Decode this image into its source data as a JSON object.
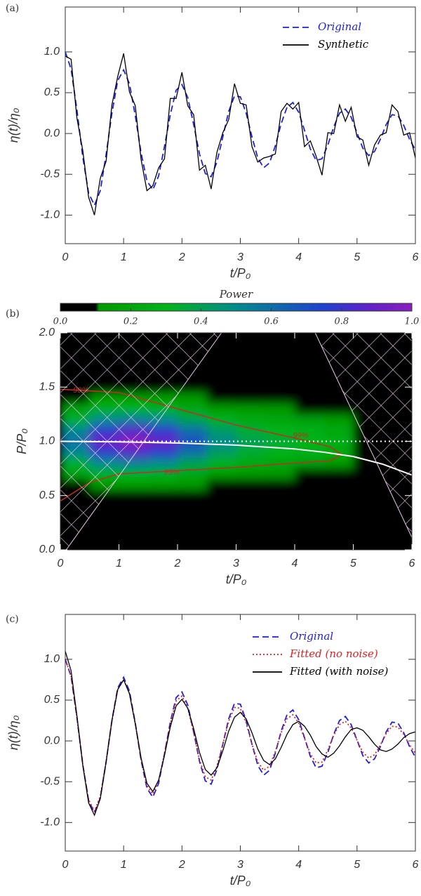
{
  "chart_data": [
    {
      "type": "line",
      "panel_label": "(a)",
      "xlabel": "t/P₀",
      "ylabel": "η(t)/η₀",
      "xlim": [
        0,
        6
      ],
      "ylim": [
        -1.35,
        1.55
      ],
      "xticks": [
        0,
        1,
        2,
        3,
        4,
        5,
        6
      ],
      "yticks": [
        {
          "value": -1,
          "label": "-1.0"
        },
        -0.5,
        {
          "value": 0,
          "label": "0.0"
        },
        0.5,
        {
          "value": 1,
          "label": "1.0"
        }
      ],
      "legend": "upper right",
      "x": [
        0,
        0.1,
        0.2,
        0.3,
        0.4,
        0.5,
        0.6,
        0.7,
        0.8,
        0.9,
        1,
        1.1,
        1.2,
        1.3,
        1.4,
        1.5,
        1.6,
        1.7,
        1.8,
        1.9,
        2,
        2.1,
        2.2,
        2.3,
        2.4,
        2.5,
        2.6,
        2.7,
        2.8,
        2.9,
        3,
        3.1,
        3.2,
        3.3,
        3.4,
        3.5,
        3.6,
        3.7,
        3.8,
        3.9,
        4,
        4.1,
        4.2,
        4.3,
        4.4,
        4.5,
        4.6,
        4.7,
        4.8,
        4.9,
        5,
        5.1,
        5.2,
        5.3,
        5.4,
        5.5,
        5.6,
        5.7,
        5.8,
        5.9,
        6
      ],
      "series": [
        {
          "name": "Original",
          "color": "#1f1fdc",
          "style": "dashed",
          "values": [
            1.0,
            0.79,
            0.29,
            -0.29,
            -0.73,
            -0.88,
            -0.7,
            -0.26,
            0.25,
            0.65,
            0.78,
            0.61,
            0.22,
            -0.24,
            -0.58,
            -0.69,
            -0.52,
            -0.16,
            0.23,
            0.53,
            0.6,
            0.44,
            0.11,
            -0.25,
            -0.49,
            -0.53,
            -0.35,
            -0.04,
            0.27,
            0.46,
            0.45,
            0.25,
            -0.04,
            -0.3,
            -0.42,
            -0.36,
            -0.15,
            0.12,
            0.32,
            0.38,
            0.26,
            0.04,
            -0.19,
            -0.33,
            -0.31,
            -0.14,
            0.08,
            0.25,
            0.3,
            0.2,
            0.01,
            -0.18,
            -0.27,
            -0.22,
            -0.07,
            0.11,
            0.23,
            0.22,
            0.1,
            -0.07,
            -0.2
          ]
        },
        {
          "name": "Synthetic",
          "color": "#000000",
          "style": "solid",
          "values": [
            0.95,
            0.91,
            0.19,
            -0.21,
            -0.78,
            -1.0,
            -0.55,
            -0.34,
            0.35,
            0.7,
            0.98,
            0.51,
            0.34,
            -0.32,
            -0.7,
            -0.64,
            -0.42,
            -0.31,
            0.43,
            0.43,
            0.75,
            0.34,
            0.23,
            -0.45,
            -0.39,
            -0.68,
            -0.23,
            0.01,
            0.17,
            0.61,
            0.37,
            0.35,
            -0.16,
            -0.35,
            -0.3,
            -0.28,
            -0.25,
            0.27,
            0.37,
            0.3,
            0.38,
            -0.16,
            -0.09,
            -0.28,
            -0.51,
            0.01,
            0.0,
            0.35,
            0.15,
            0.32,
            -0.04,
            -0.08,
            -0.39,
            -0.14,
            -0.02,
            0.01,
            0.35,
            0.27,
            -0.02,
            0.01,
            -0.3
          ]
        }
      ]
    },
    {
      "type": "heatmap",
      "panel_label": "(b)",
      "xlabel": "t/P₀",
      "ylabel": "P/P₀",
      "xlim": [
        0,
        6
      ],
      "ylim": [
        0,
        2
      ],
      "xticks": [
        0,
        1,
        2,
        3,
        4,
        5,
        6
      ],
      "yticks": [
        {
          "value": 0,
          "label": "0.0"
        },
        0.5,
        {
          "value": 1,
          "label": "1.0"
        },
        1.5,
        {
          "value": 2,
          "label": "2.0"
        }
      ],
      "colorbar": {
        "title": "Power",
        "lim": [
          0,
          1
        ],
        "ticks": [
          {
            "value": 0,
            "label": "0.0"
          },
          0.2,
          0.4,
          0.6,
          0.8,
          {
            "value": 1,
            "label": "1.0"
          }
        ]
      },
      "colorscale": [
        [
          0,
          "#000000"
        ],
        [
          0.1,
          "#000000"
        ],
        [
          0.11,
          "#009a00"
        ],
        [
          0.3,
          "#00b418"
        ],
        [
          0.5,
          "#008c8c"
        ],
        [
          0.75,
          "#2040d0"
        ],
        [
          0.88,
          "#6020c8"
        ],
        [
          1,
          "#8a20c0"
        ]
      ],
      "t": [
        0.25,
        0.75,
        1.25,
        1.75,
        2.25,
        2.75,
        3.25,
        3.75,
        4.25,
        4.75,
        5.25,
        5.75
      ],
      "period": [
        1.5,
        1.4,
        1.3,
        1.2,
        1.1,
        1.0,
        0.9,
        0.8,
        0.7,
        0.6,
        0.5
      ],
      "z": [
        [
          0.03,
          0.05,
          0.05,
          0.05,
          0.04,
          0.03,
          0.02,
          0.02,
          0.02,
          0.01,
          0.01,
          0
        ],
        [
          0.09,
          0.14,
          0.15,
          0.14,
          0.11,
          0.08,
          0.06,
          0.05,
          0.05,
          0.04,
          0.02,
          0
        ],
        [
          0.18,
          0.27,
          0.3,
          0.27,
          0.21,
          0.15,
          0.12,
          0.11,
          0.09,
          0.08,
          0.03,
          0.01
        ],
        [
          0.33,
          0.5,
          0.55,
          0.5,
          0.39,
          0.28,
          0.22,
          0.19,
          0.17,
          0.14,
          0.06,
          0.01
        ],
        [
          0.51,
          0.77,
          0.85,
          0.77,
          0.6,
          0.43,
          0.34,
          0.3,
          0.26,
          0.21,
          0.09,
          0.02
        ],
        [
          0.6,
          0.9,
          1.0,
          0.9,
          0.7,
          0.5,
          0.4,
          0.35,
          0.3,
          0.25,
          0.1,
          0.02
        ],
        [
          0.51,
          0.77,
          0.85,
          0.77,
          0.6,
          0.43,
          0.34,
          0.3,
          0.26,
          0.21,
          0.09,
          0.02
        ],
        [
          0.33,
          0.5,
          0.55,
          0.5,
          0.39,
          0.28,
          0.22,
          0.19,
          0.17,
          0.14,
          0.06,
          0.01
        ],
        [
          0.18,
          0.27,
          0.3,
          0.27,
          0.21,
          0.15,
          0.12,
          0.11,
          0.09,
          0.08,
          0.03,
          0.01
        ],
        [
          0.09,
          0.14,
          0.15,
          0.14,
          0.11,
          0.08,
          0.06,
          0.05,
          0.05,
          0.04,
          0.02,
          0
        ],
        [
          0.03,
          0.05,
          0.05,
          0.05,
          0.04,
          0.03,
          0.02,
          0.02,
          0.02,
          0.01,
          0.01,
          0
        ]
      ],
      "contour": {
        "label": "99%",
        "color": "#c03020",
        "x": [
          0,
          1,
          2,
          3,
          4,
          4.6,
          4.8,
          4.6,
          4,
          3,
          2,
          1,
          0.5,
          0
        ],
        "y": [
          1.48,
          1.45,
          1.3,
          1.15,
          1.03,
          0.95,
          0.88,
          0.82,
          0.8,
          0.76,
          0.73,
          0.7,
          0.62,
          0.45
        ]
      },
      "ridge": {
        "color": "#ffffff",
        "x": [
          0,
          1,
          2,
          3,
          4,
          4.5,
          5,
          5.5,
          6
        ],
        "y": [
          1.0,
          0.995,
          0.985,
          0.965,
          0.93,
          0.9,
          0.86,
          0.79,
          0.69
        ]
      },
      "reference": {
        "color": "#ffffff",
        "x": [
          0,
          6
        ],
        "y": [
          1,
          1
        ]
      },
      "coi": [
        {
          "x": [
            0.1,
            2.75
          ],
          "y": [
            0,
            2
          ]
        },
        {
          "x": [
            4.35,
            6.1
          ],
          "y": [
            2,
            0
          ]
        }
      ]
    },
    {
      "type": "line",
      "panel_label": "(c)",
      "xlabel": "t/P₀",
      "ylabel": "η(t)/η₀",
      "xlim": [
        0,
        6
      ],
      "ylim": [
        -1.35,
        1.55
      ],
      "xticks": [
        0,
        1,
        2,
        3,
        4,
        5,
        6
      ],
      "yticks": [
        {
          "value": -1,
          "label": "-1.0"
        },
        -0.5,
        {
          "value": 0,
          "label": "0.0"
        },
        0.5,
        {
          "value": 1,
          "label": "1.0"
        }
      ],
      "legend": "upper right",
      "x": [
        0,
        0.1,
        0.2,
        0.3,
        0.4,
        0.5,
        0.6,
        0.7,
        0.8,
        0.9,
        1,
        1.1,
        1.2,
        1.3,
        1.4,
        1.5,
        1.6,
        1.7,
        1.8,
        1.9,
        2,
        2.1,
        2.2,
        2.3,
        2.4,
        2.5,
        2.6,
        2.7,
        2.8,
        2.9,
        3,
        3.1,
        3.2,
        3.3,
        3.4,
        3.5,
        3.6,
        3.7,
        3.8,
        3.9,
        4,
        4.1,
        4.2,
        4.3,
        4.4,
        4.5,
        4.6,
        4.7,
        4.8,
        4.9,
        5,
        5.1,
        5.2,
        5.3,
        5.4,
        5.5,
        5.6,
        5.7,
        5.8,
        5.9,
        6
      ],
      "series": [
        {
          "name": "Original",
          "color": "#1f1fdc",
          "style": "dashed",
          "values": [
            1.0,
            0.79,
            0.29,
            -0.29,
            -0.73,
            -0.88,
            -0.7,
            -0.26,
            0.25,
            0.65,
            0.78,
            0.61,
            0.22,
            -0.24,
            -0.58,
            -0.69,
            -0.52,
            -0.16,
            0.23,
            0.53,
            0.6,
            0.44,
            0.11,
            -0.25,
            -0.49,
            -0.53,
            -0.35,
            -0.04,
            0.27,
            0.46,
            0.45,
            0.25,
            -0.04,
            -0.3,
            -0.42,
            -0.36,
            -0.15,
            0.12,
            0.32,
            0.38,
            0.26,
            0.04,
            -0.19,
            -0.33,
            -0.31,
            -0.14,
            0.08,
            0.25,
            0.3,
            0.2,
            0.01,
            -0.18,
            -0.27,
            -0.22,
            -0.07,
            0.11,
            0.23,
            0.22,
            0.1,
            -0.07,
            -0.2
          ]
        },
        {
          "name": "Fitted (no noise)",
          "color": "#e02020",
          "style": "dotted",
          "values": [
            1.0,
            0.79,
            0.29,
            -0.29,
            -0.72,
            -0.86,
            -0.68,
            -0.25,
            0.24,
            0.63,
            0.75,
            0.58,
            0.21,
            -0.23,
            -0.55,
            -0.65,
            -0.49,
            -0.15,
            0.21,
            0.49,
            0.55,
            0.4,
            0.1,
            -0.23,
            -0.44,
            -0.48,
            -0.31,
            -0.04,
            0.24,
            0.41,
            0.4,
            0.22,
            -0.04,
            -0.26,
            -0.36,
            -0.31,
            -0.13,
            0.1,
            0.27,
            0.32,
            0.22,
            0.03,
            -0.16,
            -0.27,
            -0.26,
            -0.11,
            0.07,
            0.2,
            0.24,
            0.16,
            0.01,
            -0.14,
            -0.21,
            -0.17,
            -0.05,
            0.09,
            0.18,
            0.17,
            0.08,
            -0.05,
            -0.15
          ]
        },
        {
          "name": "Fitted (with noise)",
          "color": "#000000",
          "style": "solid",
          "values": [
            1.1,
            0.86,
            0.31,
            -0.3,
            -0.76,
            -0.91,
            -0.71,
            -0.26,
            0.25,
            0.63,
            0.75,
            0.58,
            0.21,
            -0.21,
            -0.52,
            -0.62,
            -0.48,
            -0.18,
            0.17,
            0.43,
            0.51,
            0.4,
            0.15,
            -0.14,
            -0.35,
            -0.42,
            -0.33,
            -0.12,
            0.12,
            0.29,
            0.35,
            0.27,
            0.1,
            -0.1,
            -0.24,
            -0.29,
            -0.22,
            -0.08,
            0.08,
            0.2,
            0.24,
            0.18,
            0.07,
            -0.07,
            -0.16,
            -0.2,
            -0.15,
            -0.06,
            0.05,
            0.14,
            0.16,
            0.13,
            0.05,
            -0.04,
            -0.11,
            -0.13,
            -0.1,
            -0.04,
            0.04,
            0.09,
            0.11
          ]
        }
      ]
    }
  ]
}
